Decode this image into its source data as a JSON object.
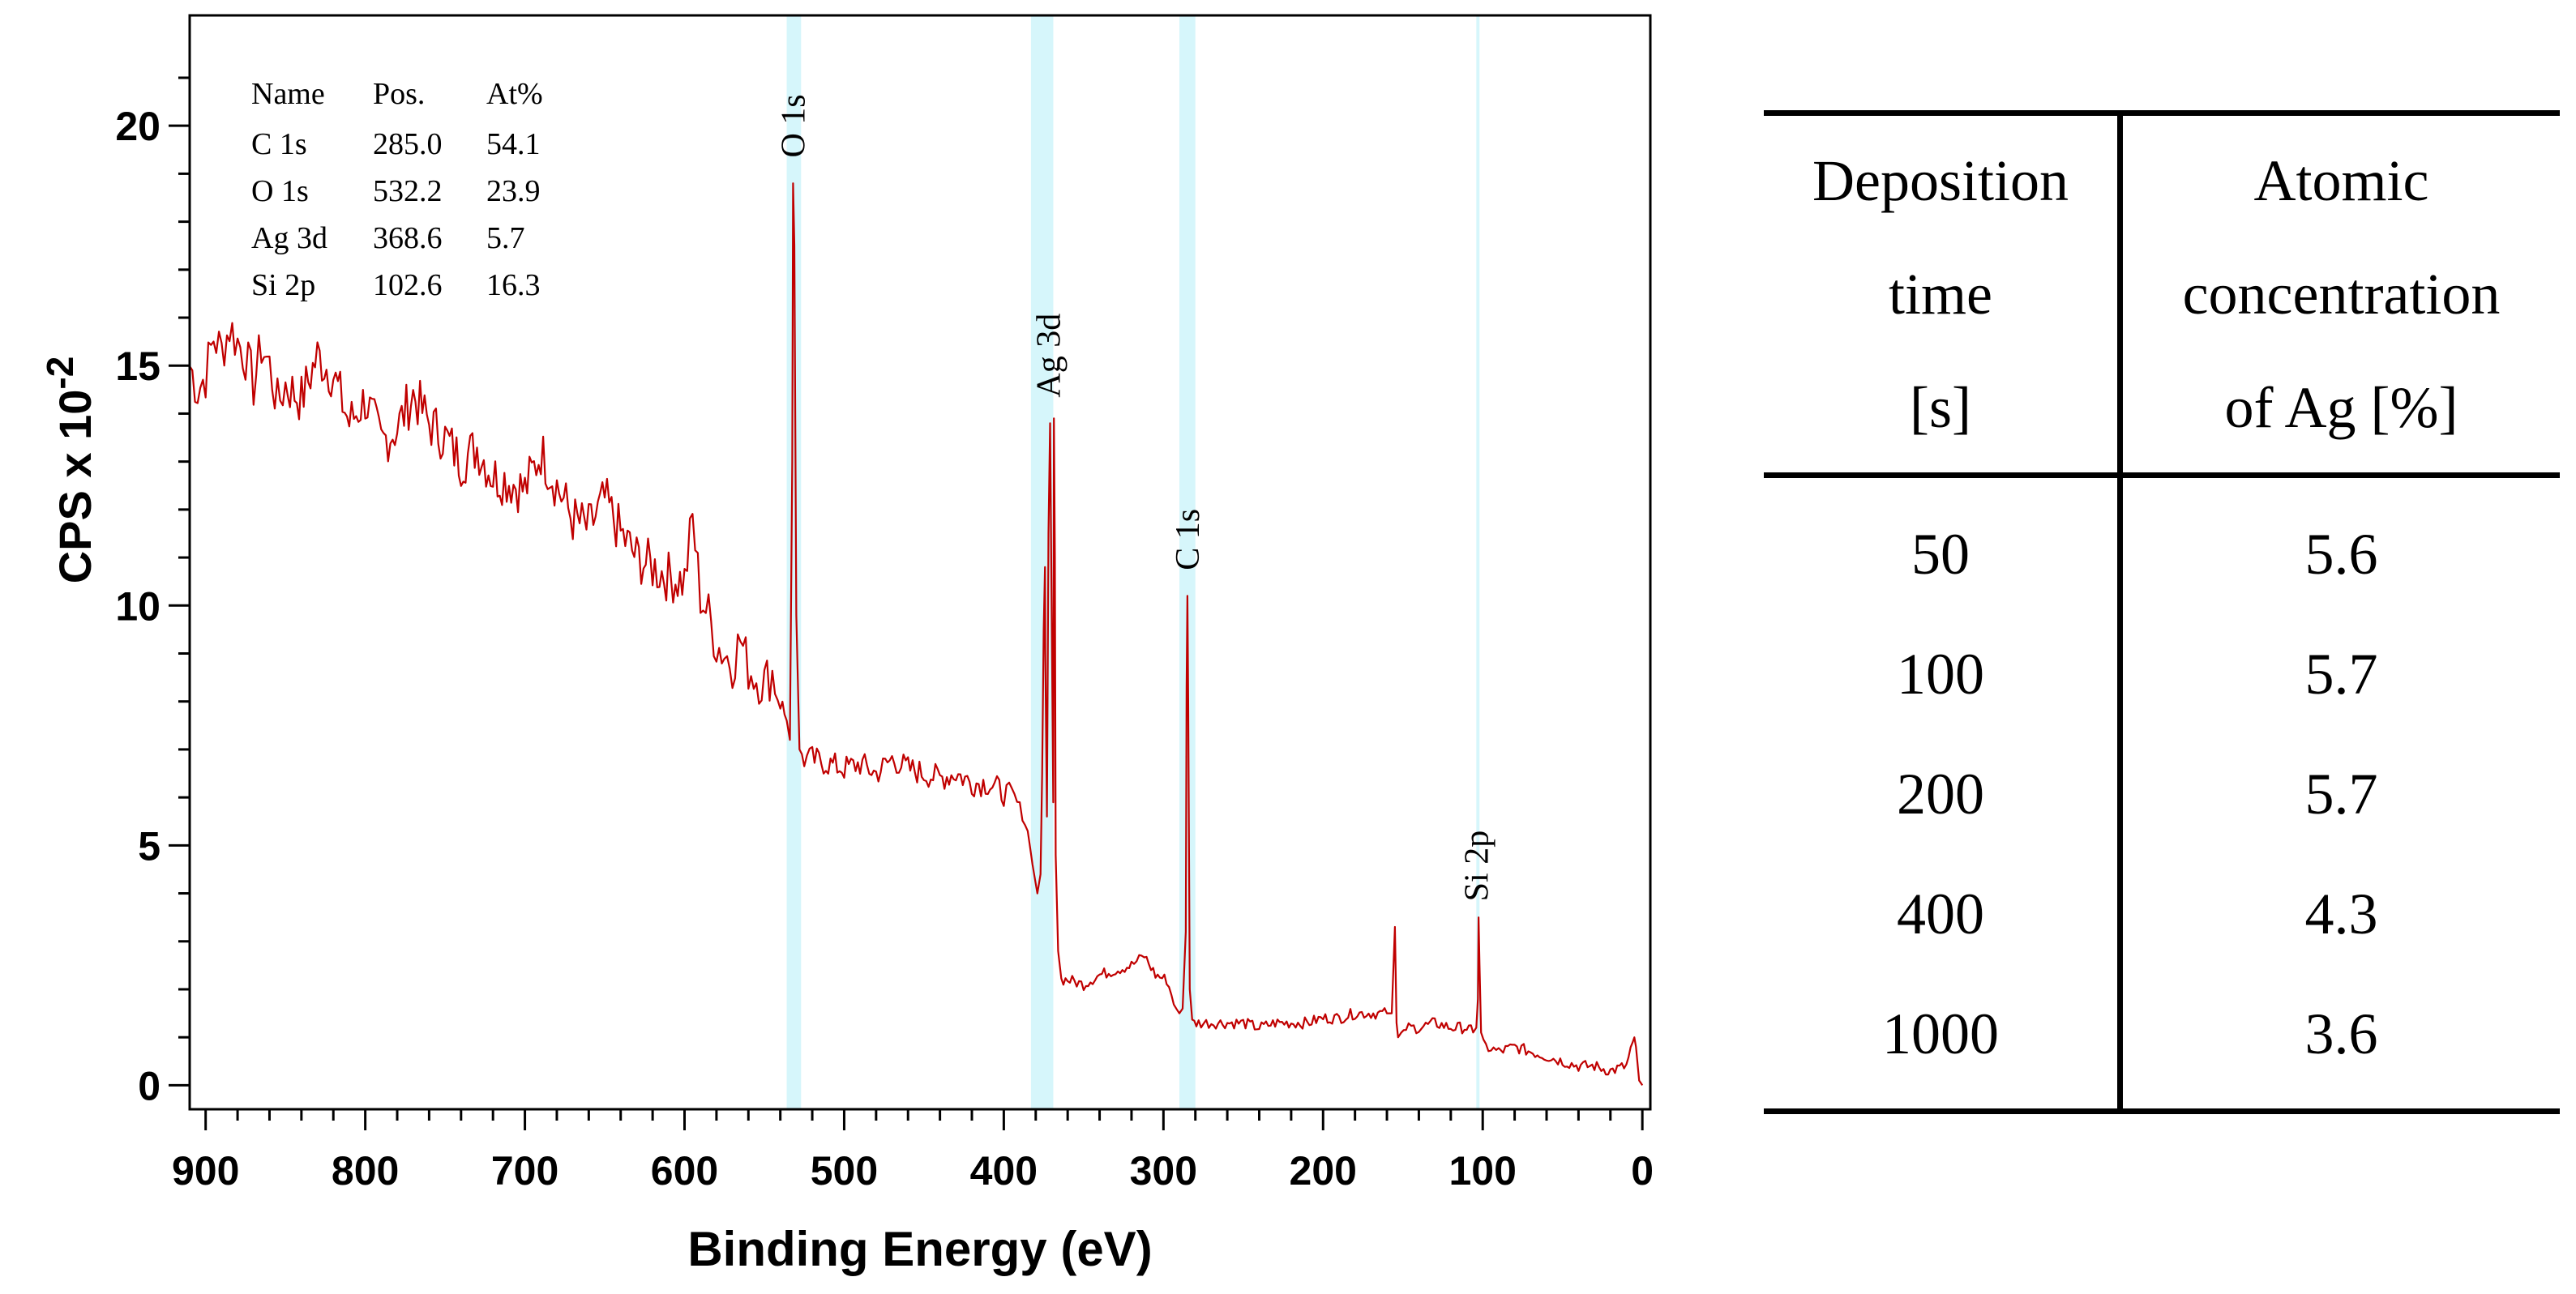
{
  "chart_data": {
    "type": "line",
    "xlabel": "Binding Energy (eV)",
    "ylabel": "CPS x 10",
    "ylabel_exp": "-2",
    "xlim": [
      910,
      -5
    ],
    "ylim": [
      -0.5,
      22.3
    ],
    "x_ticks": [
      900,
      800,
      700,
      600,
      500,
      400,
      300,
      200,
      100,
      0
    ],
    "y_ticks": [
      0,
      5,
      10,
      15,
      20
    ],
    "grid": false,
    "legend": "none",
    "line_color": "#c00000",
    "highlight_color": "#d6f6fb",
    "highlight_bands": [
      {
        "name": "O 1s",
        "x": [
          536,
          527
        ]
      },
      {
        "name": "Ag 3d",
        "x": [
          383,
          369
        ]
      },
      {
        "name": "C 1s",
        "x": [
          290,
          280
        ]
      },
      {
        "name": "Si 2p",
        "x": [
          104,
          102
        ]
      }
    ],
    "peak_labels": [
      {
        "text": "O 1s",
        "x": 532,
        "y": 19.2
      },
      {
        "text": "Ag 3d",
        "x": 372,
        "y": 14.2
      },
      {
        "text": "C 1s",
        "x": 285,
        "y": 10.6
      },
      {
        "text": "Si 2p",
        "x": 104,
        "y": 3.7
      }
    ],
    "series": [
      {
        "x": [
          910,
          905,
          900,
          895,
          890,
          885,
          880,
          875,
          870,
          865,
          860,
          855,
          850,
          840,
          830,
          820,
          810,
          800,
          790,
          780,
          770,
          760,
          750,
          740,
          730,
          720,
          710,
          700,
          690,
          680,
          670,
          660,
          650,
          640,
          630,
          620,
          610,
          600,
          595,
          590,
          585,
          580,
          575,
          570,
          565,
          560,
          555,
          550,
          545,
          540,
          536,
          534,
          532.5,
          532,
          531.2,
          530,
          528,
          525,
          520,
          510,
          500,
          490,
          480,
          470,
          460,
          450,
          440,
          430,
          420,
          410,
          400,
          395,
          390,
          385,
          382,
          379,
          377,
          376,
          375,
          374.2,
          374,
          373,
          372,
          371,
          369,
          368.6,
          368,
          367.5,
          366,
          364,
          360,
          350,
          340,
          330,
          320,
          312,
          305,
          298,
          292,
          290,
          288,
          286,
          285.5,
          285,
          284.5,
          283.5,
          282,
          278,
          270,
          260,
          250,
          240,
          230,
          220,
          210,
          200,
          190,
          180,
          170,
          160,
          157,
          155,
          154,
          153,
          151,
          148,
          140,
          130,
          120,
          110,
          106,
          104,
          103,
          102.6,
          102,
          101,
          98,
          90,
          80,
          70,
          60,
          50,
          40,
          30,
          20,
          10,
          6,
          5,
          4,
          2,
          0
        ],
        "y": [
          15.0,
          14.5,
          14.8,
          15.6,
          15.3,
          15.8,
          15.5,
          15.2,
          14.6,
          15.4,
          15.0,
          14.2,
          14.6,
          14.3,
          15.2,
          14.8,
          13.8,
          14.3,
          13.4,
          13.7,
          14.4,
          13.8,
          13.5,
          13.0,
          13.3,
          12.7,
          12.6,
          12.4,
          13.2,
          12.5,
          11.8,
          11.6,
          12.2,
          11.5,
          11.0,
          10.8,
          10.6,
          10.5,
          11.8,
          10.2,
          9.8,
          9.2,
          9.0,
          8.8,
          9.3,
          8.7,
          8.5,
          8.4,
          8.6,
          8.0,
          7.6,
          7.2,
          13.0,
          18.8,
          17.5,
          9.8,
          7.0,
          6.8,
          6.8,
          6.7,
          6.6,
          6.7,
          6.5,
          6.8,
          6.6,
          6.5,
          6.4,
          6.5,
          6.3,
          6.3,
          6.1,
          6.0,
          5.8,
          5.3,
          4.6,
          4.0,
          4.4,
          6.5,
          9.5,
          10.8,
          9.0,
          5.6,
          11.5,
          13.8,
          5.9,
          13.9,
          11.0,
          4.8,
          2.8,
          2.2,
          2.2,
          2.1,
          2.3,
          2.4,
          2.5,
          2.7,
          2.3,
          2.2,
          1.6,
          1.5,
          1.6,
          3.2,
          8.3,
          10.2,
          8.0,
          2.0,
          1.3,
          1.3,
          1.3,
          1.3,
          1.3,
          1.2,
          1.3,
          1.3,
          1.3,
          1.4,
          1.4,
          1.5,
          1.5,
          1.5,
          1.5,
          3.3,
          1.3,
          1.0,
          1.1,
          1.2,
          1.2,
          1.3,
          1.2,
          1.2,
          1.1,
          1.2,
          1.8,
          3.5,
          2.5,
          1.1,
          0.8,
          0.7,
          0.8,
          0.7,
          0.6,
          0.5,
          0.4,
          0.4,
          0.3,
          0.4,
          0.9,
          1.0,
          0.8,
          0.1,
          0.0
        ]
      }
    ],
    "annotation_table": {
      "headers": [
        "Name",
        "Pos.",
        "At%"
      ],
      "rows": [
        [
          "C 1s",
          "285.0",
          "54.1"
        ],
        [
          "O 1s",
          "532.2",
          "23.9"
        ],
        [
          "Ag 3d",
          "368.6",
          "5.7"
        ],
        [
          "Si 2p",
          "102.6",
          "16.3"
        ]
      ]
    }
  },
  "table": {
    "header": {
      "col1_lines": [
        "Deposition",
        "time",
        "[s]"
      ],
      "col2_lines": [
        "Atomic",
        "concentration",
        "of Ag [%]"
      ]
    },
    "rows": [
      {
        "time": "50",
        "conc": "5.6"
      },
      {
        "time": "100",
        "conc": "5.7"
      },
      {
        "time": "200",
        "conc": "5.7"
      },
      {
        "time": "400",
        "conc": "4.3"
      },
      {
        "time": "1000",
        "conc": "3.6"
      }
    ]
  }
}
